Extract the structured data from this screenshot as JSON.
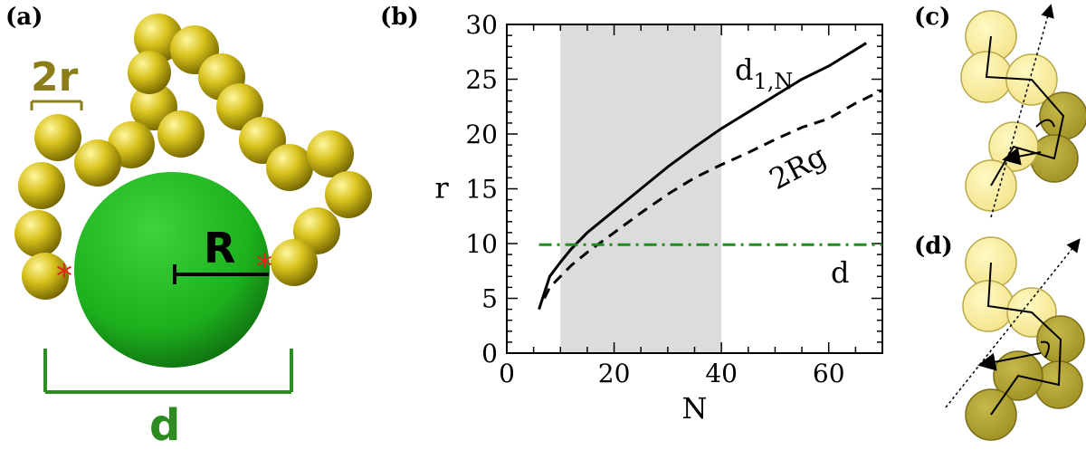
{
  "panels": {
    "a": {
      "label": "(a)",
      "bead_size_label": "2r",
      "radius_label": "R",
      "diameter_label": "d",
      "colors": {
        "bead": "#d8c21c",
        "sphere": "#1fb41f",
        "dimension": "#2e8b22",
        "marker": "#e8231c",
        "bead_label": "#8a7d1a"
      }
    },
    "b": {
      "label": "(b)"
    },
    "c": {
      "label": "(c)"
    },
    "d": {
      "label": "(d)"
    }
  },
  "chart_data": {
    "type": "line",
    "xlabel": "N",
    "ylabel": "r",
    "xlim": [
      0,
      70
    ],
    "ylim": [
      0,
      30
    ],
    "xticks": [
      0,
      20,
      40,
      60
    ],
    "yticks": [
      0,
      5,
      10,
      15,
      20,
      25,
      30
    ],
    "shaded_region": {
      "x": [
        10,
        40
      ],
      "color": "#dcdcdc"
    },
    "series": [
      {
        "name": "d1,N",
        "label_main": "d",
        "label_sub": "1,N",
        "style": "solid",
        "color": "#000000",
        "x": [
          6,
          8,
          10,
          12,
          15,
          20,
          25,
          30,
          35,
          40,
          45,
          50,
          55,
          60,
          67
        ],
        "y": [
          4,
          7,
          8.3,
          9.5,
          11,
          13,
          15,
          17,
          18.8,
          20.5,
          22,
          23.5,
          25,
          26.2,
          28.3
        ]
      },
      {
        "name": "2Rg",
        "label_main": "2Rg",
        "style": "dashed",
        "color": "#000000",
        "x": [
          7,
          8,
          10,
          12,
          15,
          20,
          25,
          30,
          35,
          40,
          45,
          50,
          55,
          60,
          65,
          70
        ],
        "y": [
          5,
          6,
          7,
          8,
          9.2,
          11,
          12.8,
          14.5,
          16,
          17.2,
          18.3,
          19.5,
          20.6,
          21.4,
          22.8,
          24
        ]
      },
      {
        "name": "d",
        "label_main": "d",
        "style": "dashdot",
        "color": "#228b22",
        "x": [
          6,
          70
        ],
        "y": [
          9.9,
          9.9
        ]
      }
    ]
  }
}
